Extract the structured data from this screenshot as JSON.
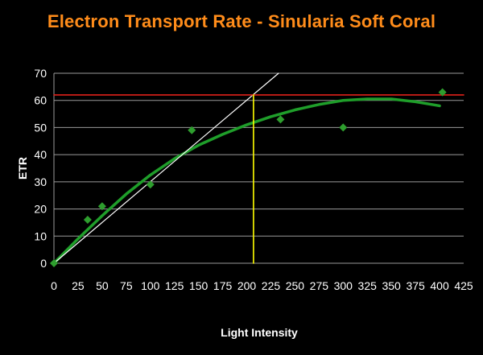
{
  "chart_data": {
    "type": "scatter",
    "title": "Electron Transport Rate - Sinularia Soft Coral",
    "xlabel": "Light Intensity",
    "ylabel": "ETR",
    "xlim": [
      0,
      425
    ],
    "ylim": [
      0,
      70
    ],
    "x_ticks": [
      0,
      25,
      50,
      75,
      100,
      125,
      150,
      175,
      200,
      225,
      250,
      275,
      300,
      325,
      350,
      375,
      400,
      425
    ],
    "y_ticks": [
      0,
      10,
      20,
      30,
      40,
      50,
      60,
      70
    ],
    "grid": true,
    "series": [
      {
        "type": "scatter",
        "color": "#2e9e2e",
        "marker": "diamond",
        "x": [
          0,
          35,
          50,
          100,
          143,
          235,
          300,
          403
        ],
        "y": [
          0,
          16,
          21,
          29,
          49,
          53,
          50,
          63
        ]
      },
      {
        "type": "line",
        "color": "#1f9e2a",
        "x": [
          0,
          25,
          50,
          75,
          100,
          125,
          150,
          175,
          200,
          225,
          250,
          275,
          300,
          325,
          350,
          375,
          400
        ],
        "y": [
          0,
          9,
          17.5,
          25.5,
          32.5,
          38.5,
          43.5,
          47.5,
          51,
          54,
          56.5,
          58.5,
          60,
          60.5,
          60.5,
          59.5,
          58
        ]
      },
      {
        "type": "line",
        "color": "#ffffff",
        "x": [
          0,
          233
        ],
        "y": [
          0,
          70
        ]
      },
      {
        "type": "line",
        "color": "#e0201a",
        "x": [
          0,
          425
        ],
        "y": [
          62,
          62
        ]
      },
      {
        "type": "line",
        "color": "#ffff00",
        "x": [
          207,
          207
        ],
        "y": [
          0,
          62
        ]
      }
    ]
  }
}
